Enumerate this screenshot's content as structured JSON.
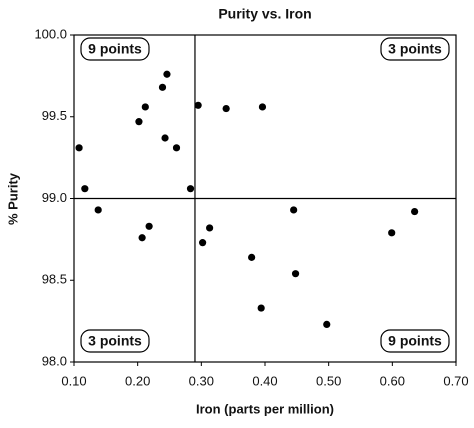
{
  "chart_data": {
    "type": "scatter",
    "title": "Purity vs. Iron",
    "x_label": "Iron (parts per million)",
    "y_label": "% Purity",
    "x": [
      0.108,
      0.117,
      0.138,
      0.202,
      0.212,
      0.246,
      0.239,
      0.243,
      0.261,
      0.283,
      0.207,
      0.218,
      0.295,
      0.339,
      0.396,
      0.302,
      0.313,
      0.379,
      0.445,
      0.448,
      0.394,
      0.497,
      0.599,
      0.635
    ],
    "values": [
      99.31,
      99.06,
      98.93,
      99.47,
      99.56,
      99.76,
      99.68,
      99.37,
      99.31,
      99.06,
      98.76,
      98.83,
      99.57,
      99.55,
      99.56,
      98.73,
      98.82,
      98.64,
      98.93,
      98.54,
      98.33,
      98.23,
      98.79,
      98.92
    ],
    "color": "#000000",
    "xlim": [
      0.1,
      0.7
    ],
    "xticks": [
      {
        "value": 0.1,
        "label": "0.10"
      },
      {
        "value": 0.2,
        "label": "0.20"
      },
      {
        "value": 0.3,
        "label": "0.30"
      },
      {
        "value": 0.4,
        "label": "0.40"
      },
      {
        "value": 0.5,
        "label": "0.50"
      },
      {
        "value": 0.6,
        "label": "0.60"
      },
      {
        "value": 0.7,
        "label": "0.70"
      }
    ],
    "ylim": [
      98,
      100
    ],
    "yticks": [
      {
        "value": 98,
        "label": "98.0"
      },
      {
        "value": 98.5,
        "label": "98.5"
      },
      {
        "value": 99,
        "label": "99.0"
      },
      {
        "value": 99.5,
        "label": "99.5"
      },
      {
        "value": 100,
        "label": "100.0"
      }
    ],
    "median_x": 0.29,
    "median_y": 99.0,
    "annotations": [
      {
        "text": "9 points",
        "corner": "top-left"
      },
      {
        "text": "3 points",
        "corner": "top-right"
      },
      {
        "text": "3 points",
        "corner": "bottom-left"
      },
      {
        "text": "9 points",
        "corner": "bottom-right"
      }
    ]
  }
}
